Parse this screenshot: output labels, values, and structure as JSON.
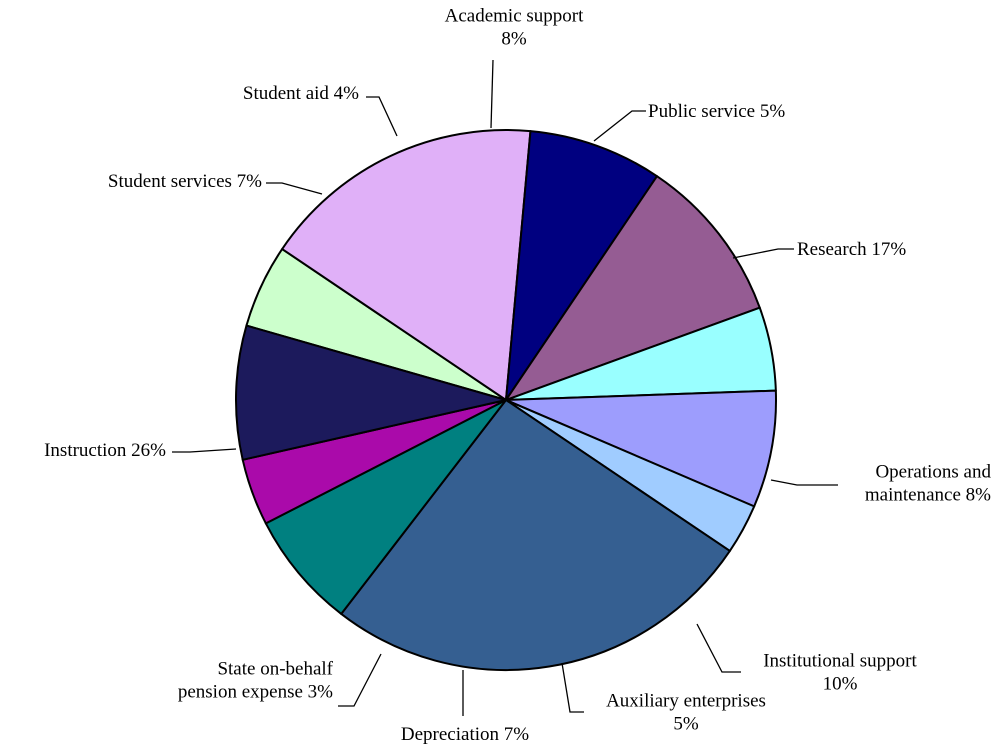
{
  "chart_data": {
    "type": "pie",
    "slices": [
      {
        "name": "Public service",
        "value": 5,
        "color": "#CCFFCC",
        "label_lines": [
          "Public service 5%"
        ]
      },
      {
        "name": "Research",
        "value": 17,
        "color": "#E0B0F8",
        "label_lines": [
          "Research 17%"
        ]
      },
      {
        "name": "Operations and maintenance",
        "value": 8,
        "color": "#000080",
        "label_lines": [
          "Operations and",
          "maintenance 8%"
        ]
      },
      {
        "name": "Institutional support",
        "value": 10,
        "color": "#955C93",
        "label_lines": [
          "Institutional support",
          "10%"
        ]
      },
      {
        "name": "Auxiliary enterprises",
        "value": 5,
        "color": "#99FFFF",
        "label_lines": [
          "Auxiliary enterprises",
          "5%"
        ]
      },
      {
        "name": "Depreciation",
        "value": 7,
        "color": "#9D9DFD",
        "label_lines": [
          "Depreciation 7%"
        ]
      },
      {
        "name": "State on-behalf pension expense",
        "value": 3,
        "color": "#A0CCFF",
        "label_lines": [
          "State on-behalf",
          "pension expense 3%"
        ]
      },
      {
        "name": "Instruction",
        "value": 26,
        "color": "#355F91",
        "label_lines": [
          "Instruction 26%"
        ]
      },
      {
        "name": "Student services",
        "value": 7,
        "color": "#008080",
        "label_lines": [
          "Student services 7%"
        ]
      },
      {
        "name": "Student aid",
        "value": 4,
        "color": "#AA0AAA",
        "label_lines": [
          "Student aid 4%"
        ]
      },
      {
        "name": "Academic support",
        "value": 8,
        "color": "#1C1A5C",
        "label_lines": [
          "Academic support",
          "8%"
        ]
      }
    ]
  }
}
